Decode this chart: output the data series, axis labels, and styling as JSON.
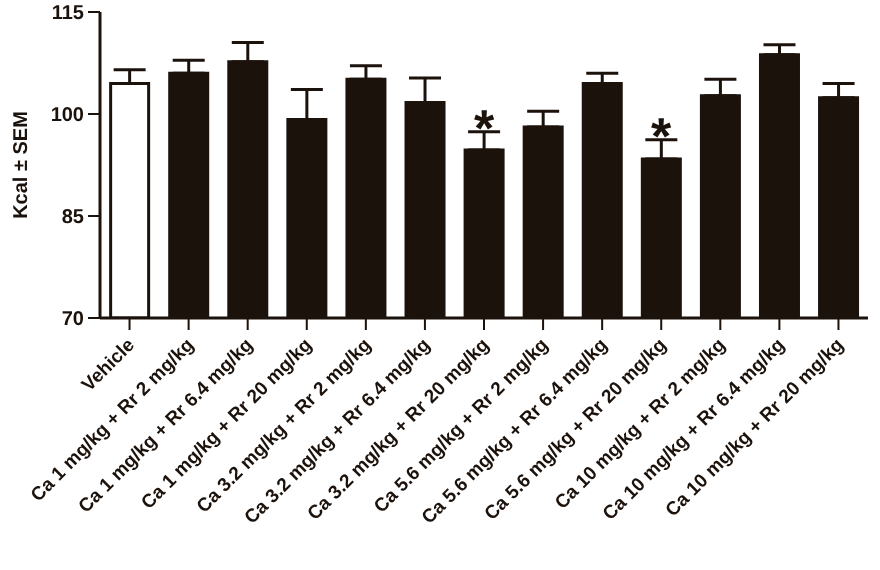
{
  "chart_data": {
    "type": "bar",
    "ylabel": "Kcal ± SEM",
    "categories": [
      "Vehicle",
      "Ca 1 mg/kg + Rr 2 mg/kg",
      "Ca 1 mg/kg + Rr 6.4 mg/kg",
      "Ca 1 mg/kg + Rr 20 mg/kg",
      "Ca 3.2 mg/kg + Rr 2 mg/kg",
      "Ca 3.2 mg/kg + Rr 6.4 mg/kg",
      "Ca 3.2 mg/kg + Rr 20 mg/kg",
      "Ca 5.6 mg/kg + Rr 2 mg/kg",
      "Ca 5.6 mg/kg + Rr 6.4 mg/kg",
      "Ca 5.6 mg/kg + Rr 20 mg/kg",
      "Ca 10 mg/kg + Rr 2 mg/kg",
      "Ca 10 mg/kg + Rr 6.4 mg/kg",
      "Ca 10 mg/kg + Rr 20 mg/kg"
    ],
    "values": [
      104.5,
      106,
      107.7,
      99.2,
      105.1,
      101.7,
      94.7,
      98.1,
      104.5,
      93.4,
      102.7,
      108.7,
      102.4
    ],
    "errors": [
      [
        104.5,
        106.5
      ],
      [
        106,
        107.9
      ],
      [
        107.7,
        110.5
      ],
      [
        99.2,
        103.6
      ],
      [
        105.1,
        107.1
      ],
      [
        101.7,
        105.3
      ],
      [
        94.7,
        97.4
      ],
      [
        98.1,
        100.4
      ],
      [
        104.5,
        106
      ],
      [
        93.4,
        96.2
      ],
      [
        102.7,
        105.1
      ],
      [
        108.7,
        110.2
      ],
      [
        102.4,
        104.5
      ]
    ],
    "colors": [
      "#ffffff",
      "#1c120c",
      "#1c120c",
      "#1c120c",
      "#1c120c",
      "#1c120c",
      "#1c120c",
      "#1c120c",
      "#1c120c",
      "#1c120c",
      "#1c120c",
      "#1c120c",
      "#1c120c"
    ],
    "ylim": [
      70,
      115
    ],
    "yticks": [
      70,
      85,
      100,
      115
    ],
    "grid": false,
    "legend": false,
    "annotations": [
      {
        "text": "*",
        "x": "Ca 3.2 mg/kg + Rr 20 mg/kg",
        "y": 97.4
      },
      {
        "text": "*",
        "x": "Ca 5.6 mg/kg + Rr 20 mg/kg",
        "y": 96.2
      }
    ]
  }
}
